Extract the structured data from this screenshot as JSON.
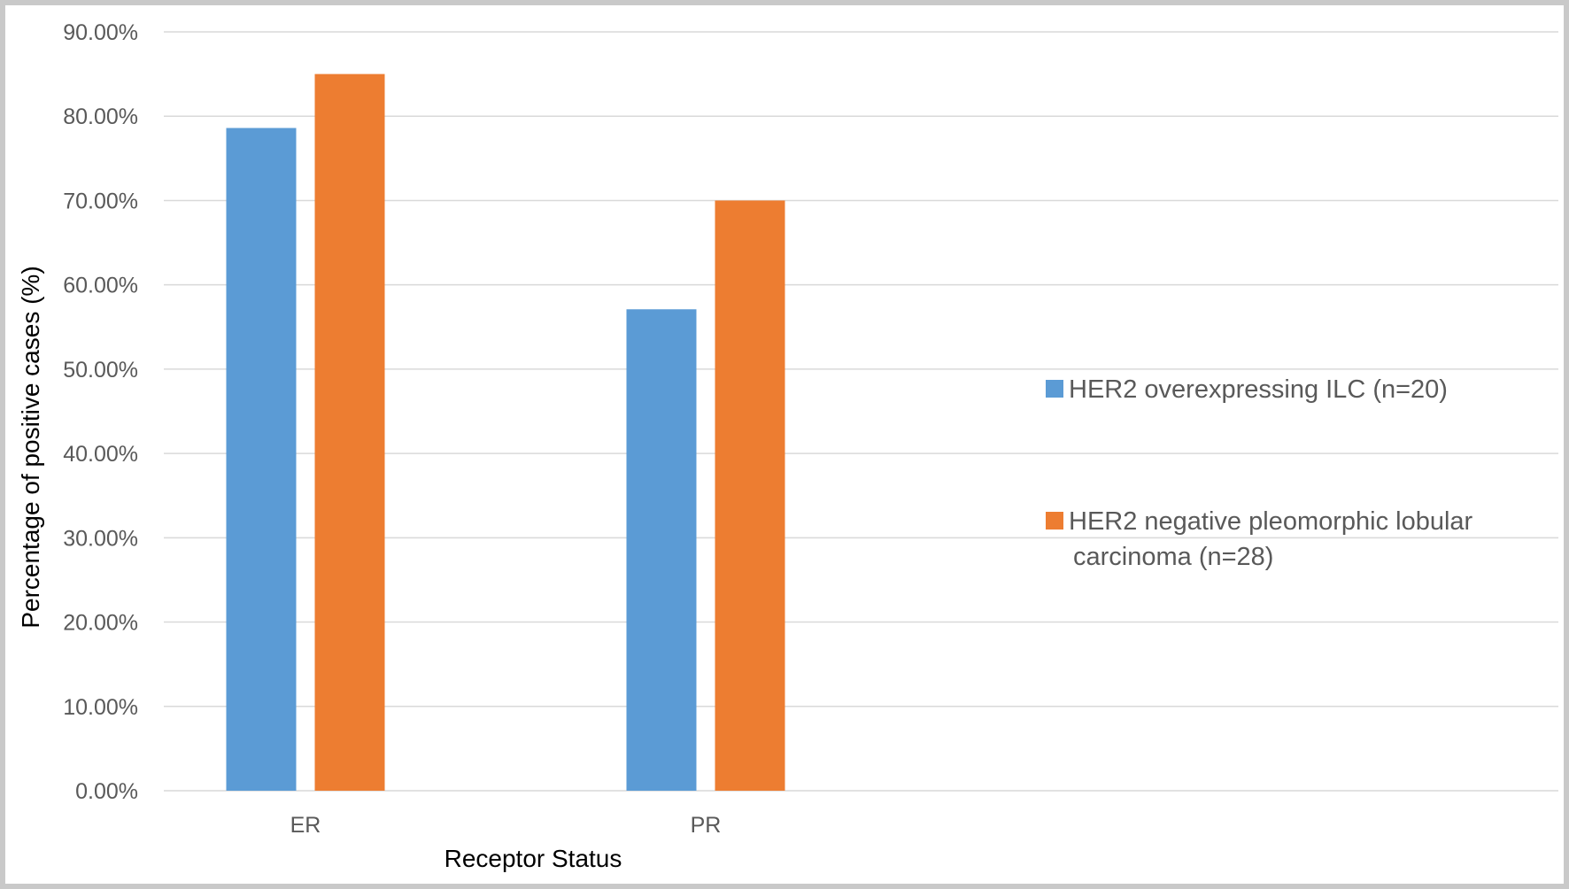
{
  "chart_data": {
    "type": "bar",
    "title": "",
    "xlabel": "Receptor Status",
    "ylabel": "Percentage of positive cases (%)",
    "categories": [
      "ER",
      "PR"
    ],
    "ylim": [
      0,
      90
    ],
    "yticks": [
      "0.00%",
      "10.00%",
      "20.00%",
      "30.00%",
      "40.00%",
      "50.00%",
      "60.00%",
      "70.00%",
      "80.00%",
      "90.00%"
    ],
    "grid": true,
    "legend_position": "right",
    "series": [
      {
        "name": "HER2 overexpressing ILC (n=20)",
        "legend_lines": [
          "HER2 overexpressing ILC (n=20)"
        ],
        "color": "#5b9bd5",
        "values": [
          78.6,
          57.1
        ]
      },
      {
        "name": "HER2 negative pleomorphic lobular carcinoma (n=28)",
        "legend_lines": [
          "HER2 negative pleomorphic lobular",
          "carcinoma (n=28)"
        ],
        "color": "#ed7d31",
        "values": [
          85.0,
          70.0
        ]
      }
    ]
  }
}
